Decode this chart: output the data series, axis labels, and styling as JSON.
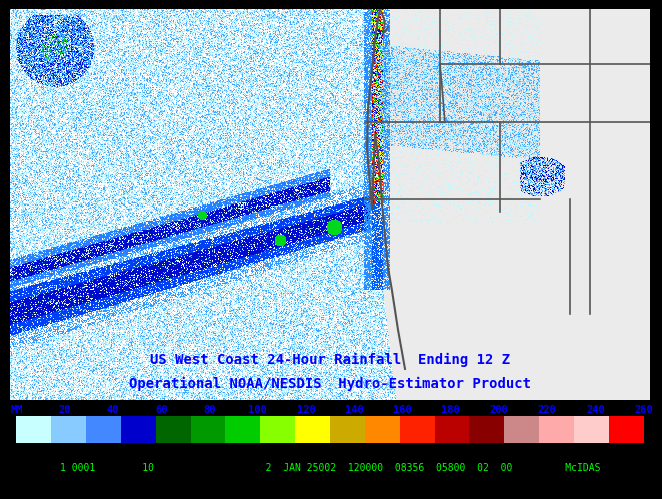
{
  "title_line1": "US West Coast 24-Hour Rainfall  Ending 12 Z",
  "title_line2": "Operational NOAA/NESDIS  Hydro-Estimator Product",
  "title_color": "#0000ff",
  "title_fontsize": 10,
  "colorbar_labels": [
    "MM",
    "20",
    "40",
    "60",
    "80",
    "100",
    "120",
    "140",
    "160",
    "180",
    "200",
    "220",
    "240",
    "260"
  ],
  "colorbar_label_color": "#0000ff",
  "colorbar_colors": [
    "#c0ffff",
    "#80c8ff",
    "#4488ff",
    "#0000cc",
    "#006600",
    "#009900",
    "#00cc00",
    "#88ff00",
    "#ffff00",
    "#ccaa00",
    "#ff8800",
    "#ff2200",
    "#bb0000",
    "#880000",
    "#cc8888",
    "#ffaaaa",
    "#ffcccc",
    "#ff0000"
  ],
  "status_bar_text": "1 0001        10                   2  JAN 25002  120000  08356  05800  02  00         McIDAS",
  "status_bar_bg": "#006400",
  "status_bar_color": "#00ff00",
  "status_bar_fontsize": 7,
  "fig_bg": "#000000",
  "map_bg": "#ebebeb",
  "land_bg": "#ebebeb",
  "ocean_bg": "#ffffff",
  "border_color": "#555555",
  "border_lw": 1.2
}
